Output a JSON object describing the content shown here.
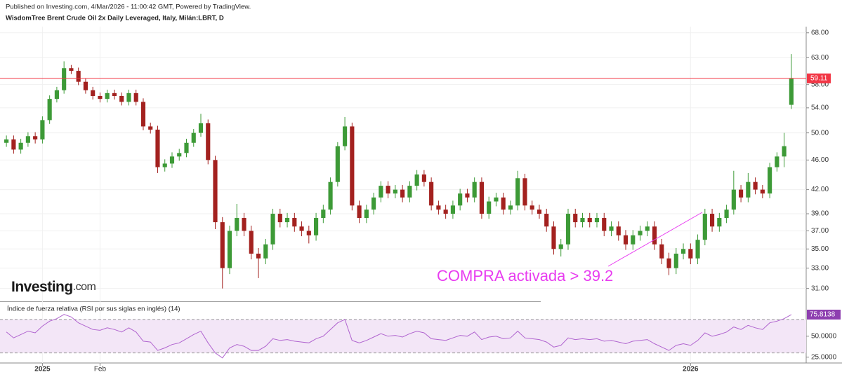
{
  "header": {
    "published": "Published on Investing.com, 4/Mar/2026 - 11:00:42 GMT, Powered by TradingView.",
    "instrument": "WisdomTree Brent Crude Oil 2x Daily Leveraged, Italy, Milán:LBRT, D"
  },
  "logo": {
    "brand": "Investing",
    "suffix": ".com"
  },
  "chart_data": [
    {
      "type": "candlestick",
      "log_scale": true,
      "up_color": "#3d9a37",
      "down_color": "#a3211f",
      "last_price_line": true,
      "last_price_color": "#f23645",
      "ylim": [
        29.8,
        69.3
      ],
      "yticks": [
        {
          "value": 31,
          "label": "31.00"
        },
        {
          "value": 33,
          "label": "33.00"
        },
        {
          "value": 35,
          "label": "35.00"
        },
        {
          "value": 37,
          "label": "37.00"
        },
        {
          "value": 39,
          "label": "39.00"
        },
        {
          "value": 42,
          "label": "42.00"
        },
        {
          "value": 46,
          "label": "46.00"
        },
        {
          "value": 50,
          "label": "50.00"
        },
        {
          "value": 54,
          "label": "54.00"
        },
        {
          "value": 58,
          "label": "58.00"
        },
        {
          "value": 63,
          "label": "63.00"
        },
        {
          "value": 68,
          "label": "68.00"
        }
      ],
      "annotations": [
        {
          "text": "COMPRA activada > 39.2",
          "color": "#e83cf0"
        }
      ],
      "categories": [
        null,
        null,
        null,
        null,
        null,
        "2025",
        null,
        null,
        null,
        null,
        null,
        null,
        null,
        "Feb",
        null,
        null,
        null,
        null,
        null,
        null,
        null,
        null,
        null,
        null,
        null,
        null,
        null,
        null,
        null,
        null,
        null,
        null,
        null,
        null,
        null,
        null,
        null,
        null,
        null,
        null,
        null,
        null,
        null,
        null,
        null,
        null,
        null,
        null,
        null,
        null,
        null,
        null,
        null,
        null,
        null,
        null,
        null,
        null,
        null,
        null,
        null,
        null,
        null,
        null,
        null,
        null,
        null,
        null,
        null,
        null,
        null,
        null,
        null,
        null,
        null,
        null,
        null,
        null,
        null,
        null,
        null,
        null,
        null,
        null,
        null,
        null,
        null,
        null,
        null,
        null,
        null,
        null,
        null,
        null,
        null,
        "2026",
        null,
        null,
        null,
        null,
        null,
        null,
        null,
        null,
        null,
        null,
        null,
        null,
        null,
        null
      ],
      "open": [
        48.5,
        49,
        47.5,
        48.5,
        49.5,
        49,
        52,
        55.5,
        57,
        61,
        60.5,
        58.5,
        57,
        56,
        55.5,
        56.5,
        56,
        55,
        56.5,
        55,
        51,
        50.5,
        45,
        45.5,
        46.5,
        47,
        48.5,
        50,
        51.5,
        46,
        38,
        33,
        37,
        38.5,
        37,
        34.5,
        34,
        35.5,
        39,
        38,
        38.5,
        37.5,
        37,
        36.5,
        38.5,
        39.5,
        43,
        48,
        51,
        40,
        38.5,
        39.5,
        41,
        42.5,
        41.5,
        42,
        41,
        42.5,
        44,
        43,
        40,
        39.5,
        39,
        40,
        41.5,
        41,
        43,
        39,
        40.5,
        41,
        39.5,
        40,
        43.5,
        40,
        39.5,
        39,
        37.5,
        35,
        35.5,
        39,
        38,
        38.5,
        38,
        38.5,
        37,
        37.5,
        36.5,
        35.5,
        36.5,
        37,
        37.5,
        35.5,
        34,
        33,
        34.5,
        35,
        34,
        36,
        39,
        37.5,
        38.5,
        39.5,
        42,
        41,
        43,
        42,
        41.5,
        45,
        46.5,
        54.5
      ],
      "high": [
        49.6,
        49.6,
        49.1,
        50.1,
        50.1,
        52.6,
        56.1,
        57.6,
        62.3,
        61.6,
        61.1,
        59.1,
        57.6,
        56.6,
        57.1,
        57.1,
        56.6,
        57.1,
        57.1,
        55.6,
        51.6,
        51.1,
        46.1,
        47.1,
        47.6,
        49.1,
        50.6,
        53,
        52.1,
        46.6,
        38.6,
        37.6,
        40.2,
        39.1,
        37.6,
        35.1,
        36.1,
        39.6,
        39.6,
        39.1,
        39.1,
        38.1,
        37.6,
        39.1,
        40.1,
        43.6,
        48.6,
        52.5,
        51.6,
        40.6,
        40.1,
        41.6,
        43.1,
        43.1,
        42.6,
        42.6,
        43.1,
        44.6,
        44.6,
        43.6,
        40.6,
        40.1,
        40.6,
        42.1,
        42.1,
        43.6,
        43.6,
        41.1,
        41.6,
        41.6,
        40.6,
        44.5,
        44.1,
        40.6,
        40.1,
        39.6,
        38.1,
        36.1,
        39.6,
        39.6,
        39.1,
        39.1,
        39.1,
        39.1,
        38.1,
        38.1,
        37.1,
        37.1,
        37.6,
        38.1,
        38.1,
        36.1,
        34.6,
        35.1,
        35.6,
        35.6,
        36.6,
        39.6,
        39.6,
        39.1,
        40.1,
        44.5,
        42.6,
        44.2,
        43.6,
        42.6,
        45.6,
        47.1,
        50,
        63.7
      ],
      "low": [
        47.9,
        46.9,
        46.9,
        47.9,
        48.4,
        48.4,
        51.4,
        54.9,
        56.4,
        59.9,
        57.9,
        56.4,
        55.4,
        54.9,
        54.9,
        55.4,
        54.4,
        54.4,
        54.4,
        50.4,
        49.9,
        44.2,
        44.4,
        44.9,
        45.9,
        46.4,
        47.9,
        49.4,
        45.4,
        37.2,
        31,
        32.4,
        36.4,
        36.4,
        33.9,
        32,
        33.4,
        34.9,
        37.4,
        37.4,
        36.9,
        36.4,
        35.6,
        35.9,
        37.9,
        38.9,
        42.4,
        47.4,
        39.4,
        37.9,
        37.9,
        38.9,
        40.4,
        40.9,
        40.9,
        40.4,
        40.4,
        41.9,
        42.4,
        39.4,
        38.9,
        38.4,
        38.4,
        39.4,
        40.4,
        40.4,
        38.4,
        38.4,
        39.9,
        38.9,
        38.9,
        39.4,
        39.4,
        38.9,
        38.4,
        36.9,
        34.4,
        34.2,
        34.9,
        37.4,
        37.4,
        37.4,
        37.4,
        36.4,
        36.4,
        35.9,
        34.9,
        34.9,
        35.9,
        36.4,
        34.9,
        33.4,
        32.3,
        32.4,
        33.9,
        33.4,
        33.4,
        35.4,
        36.9,
        36.9,
        37.9,
        38.9,
        40.4,
        40.4,
        41.4,
        40.9,
        40.9,
        44.4,
        45,
        53.8
      ],
      "close": [
        49,
        47.5,
        48.5,
        49.5,
        49,
        52,
        55.5,
        57,
        61,
        60.5,
        58.5,
        57,
        56,
        55.5,
        56.5,
        56,
        55,
        56.5,
        55,
        51,
        50.5,
        45,
        45.5,
        46.5,
        47,
        48.5,
        50,
        51.5,
        46,
        38,
        33,
        37,
        38.5,
        37,
        34.5,
        34,
        35.5,
        39,
        38,
        38.5,
        37.5,
        37,
        36.5,
        38.5,
        39.5,
        43,
        48,
        51,
        40,
        38.5,
        39.5,
        41,
        42.5,
        41.5,
        42,
        41,
        42.5,
        44,
        43,
        40,
        39.5,
        39,
        40,
        41.5,
        41,
        43,
        39,
        40.5,
        41,
        39.5,
        40,
        43.5,
        40,
        39.5,
        39,
        37.5,
        35,
        35.5,
        39,
        38,
        38.5,
        38,
        38.5,
        37,
        37.5,
        36.5,
        35.5,
        36.5,
        37,
        37.5,
        35.5,
        34,
        33,
        34.5,
        35,
        34,
        36,
        39,
        37.5,
        38.5,
        39.5,
        42,
        41,
        43,
        42,
        41.5,
        45,
        46.5,
        48,
        59.11
      ]
    },
    {
      "type": "line",
      "title": "Índice de fuerza relativa (RSI por sus siglas en inglés) (14)",
      "color": "#b064cf",
      "band": [
        30,
        70
      ],
      "band_color": "#f3e6f7",
      "ylim": [
        18,
        90
      ],
      "yticks": [
        {
          "value": 25,
          "label": "25.0000"
        },
        {
          "value": 50,
          "label": "50.0000"
        }
      ],
      "values": [
        55,
        48,
        52,
        56,
        54,
        62,
        68,
        71,
        76,
        73,
        66,
        62,
        58,
        57,
        60,
        58,
        55,
        60,
        55,
        44,
        43,
        33,
        36,
        40,
        42,
        47,
        52,
        56,
        42,
        30,
        24,
        36,
        40,
        38,
        33,
        33,
        38,
        47,
        45,
        46,
        44,
        43,
        42,
        47,
        50,
        58,
        66,
        70,
        45,
        42,
        45,
        49,
        53,
        50,
        51,
        49,
        53,
        56,
        54,
        47,
        46,
        45,
        48,
        51,
        50,
        55,
        46,
        49,
        50,
        47,
        48,
        56,
        48,
        47,
        46,
        43,
        37,
        39,
        48,
        46,
        47,
        46,
        47,
        44,
        45,
        43,
        41,
        44,
        45,
        46,
        41,
        37,
        33,
        39,
        41,
        39,
        45,
        54,
        50,
        52,
        55,
        61,
        58,
        63,
        60,
        58,
        66,
        68,
        71,
        75.8138
      ]
    }
  ]
}
